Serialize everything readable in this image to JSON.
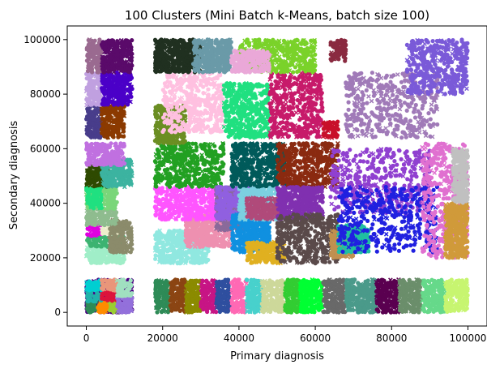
{
  "chart_data": {
    "type": "scatter",
    "title": "100 Clusters (Mini Batch k-Means, batch size 100)",
    "xlabel": "Primary diagnosis",
    "ylabel": "Secondary diagnosis",
    "xlim": [
      -5000,
      105000
    ],
    "ylim": [
      -5000,
      105000
    ],
    "xticks": [
      0,
      20000,
      40000,
      60000,
      80000,
      100000
    ],
    "yticks": [
      0,
      20000,
      40000,
      60000,
      80000,
      100000
    ],
    "x_tick_labels": [
      "0",
      "20000",
      "40000",
      "60000",
      "80000",
      "100000"
    ],
    "y_tick_labels": [
      "0",
      "20000",
      "40000",
      "60000",
      "80000",
      "100000"
    ],
    "grid": false,
    "legend": "none",
    "marker_shapes": [
      "circle",
      "x"
    ],
    "clusters": [
      {
        "color": "#4b0082",
        "x": [
          0,
          12000
        ],
        "y": [
          0,
          12000
        ]
      },
      {
        "color": "#2e8b57",
        "x": [
          0,
          3000
        ],
        "y": [
          0,
          4000
        ]
      },
      {
        "color": "#ff8c00",
        "x": [
          3000,
          6000
        ],
        "y": [
          0,
          4000
        ]
      },
      {
        "color": "#9acd32",
        "x": [
          6000,
          9000
        ],
        "y": [
          0,
          4000
        ]
      },
      {
        "color": "#20b2aa",
        "x": [
          0,
          4000
        ],
        "y": [
          4000,
          8000
        ]
      },
      {
        "color": "#dc143c",
        "x": [
          4000,
          8000
        ],
        "y": [
          4000,
          8000
        ]
      },
      {
        "color": "#00ced1",
        "x": [
          0,
          4000
        ],
        "y": [
          8000,
          12000
        ]
      },
      {
        "color": "#e9967a",
        "x": [
          4000,
          9000
        ],
        "y": [
          8000,
          12000
        ]
      },
      {
        "color": "#9370db",
        "x": [
          8000,
          12000
        ],
        "y": [
          0,
          6000
        ]
      },
      {
        "color": "#a0e0c0",
        "x": [
          8000,
          12000
        ],
        "y": [
          6000,
          12000
        ]
      },
      {
        "color": "#2e8b57",
        "x": [
          18000,
          22000
        ],
        "y": [
          0,
          12000
        ]
      },
      {
        "color": "#8b4513",
        "x": [
          22000,
          26000
        ],
        "y": [
          0,
          12000
        ]
      },
      {
        "color": "#8b8b00",
        "x": [
          26000,
          30000
        ],
        "y": [
          0,
          12000
        ]
      },
      {
        "color": "#c71585",
        "x": [
          30000,
          34000
        ],
        "y": [
          0,
          12000
        ]
      },
      {
        "color": "#2f4f9f",
        "x": [
          34000,
          38000
        ],
        "y": [
          0,
          12000
        ]
      },
      {
        "color": "#ff69b4",
        "x": [
          38000,
          42000
        ],
        "y": [
          0,
          12000
        ]
      },
      {
        "color": "#48d1cc",
        "x": [
          42000,
          46000
        ],
        "y": [
          0,
          12000
        ]
      },
      {
        "color": "#cdd89a",
        "x": [
          46000,
          52000
        ],
        "y": [
          0,
          12000
        ]
      },
      {
        "color": "#32cd32",
        "x": [
          52000,
          56000
        ],
        "y": [
          0,
          12000
        ]
      },
      {
        "color": "#00ff33",
        "x": [
          56000,
          62000
        ],
        "y": [
          0,
          12000
        ]
      },
      {
        "color": "#696969",
        "x": [
          62000,
          68000
        ],
        "y": [
          0,
          12000
        ]
      },
      {
        "color": "#4a9a8a",
        "x": [
          68000,
          76000
        ],
        "y": [
          0,
          12000
        ]
      },
      {
        "color": "#5a0050",
        "x": [
          76000,
          82000
        ],
        "y": [
          0,
          12000
        ]
      },
      {
        "color": "#6b8e6b",
        "x": [
          82000,
          88000
        ],
        "y": [
          0,
          12000
        ]
      },
      {
        "color": "#66d98a",
        "x": [
          88000,
          94000
        ],
        "y": [
          0,
          12000
        ]
      },
      {
        "color": "#c7f570",
        "x": [
          94000,
          100000
        ],
        "y": [
          0,
          12000
        ]
      },
      {
        "color": "#a0eec8",
        "x": [
          0,
          10000
        ],
        "y": [
          18000,
          24000
        ]
      },
      {
        "color": "#3cb371",
        "x": [
          0,
          10000
        ],
        "y": [
          24000,
          28000
        ]
      },
      {
        "color": "#e000e0",
        "x": [
          0,
          4000
        ],
        "y": [
          28000,
          32000
        ]
      },
      {
        "color": "#eeeecc",
        "x": [
          4000,
          8000
        ],
        "y": [
          28000,
          32000
        ]
      },
      {
        "color": "#8b8b6b",
        "x": [
          6000,
          12000
        ],
        "y": [
          22000,
          34000
        ]
      },
      {
        "color": "#8fbc8f",
        "x": [
          0,
          8000
        ],
        "y": [
          32000,
          38000
        ]
      },
      {
        "color": "#7ad67a",
        "x": [
          0,
          8000
        ],
        "y": [
          38000,
          46000
        ]
      },
      {
        "color": "#20e080",
        "x": [
          0,
          4000
        ],
        "y": [
          38000,
          46000
        ]
      },
      {
        "color": "#2e4a00",
        "x": [
          0,
          6000
        ],
        "y": [
          46000,
          54000
        ]
      },
      {
        "color": "#3cb3a0",
        "x": [
          4000,
          12000
        ],
        "y": [
          46000,
          56000
        ]
      },
      {
        "color": "#c070e0",
        "x": [
          0,
          10000
        ],
        "y": [
          54000,
          62000
        ]
      },
      {
        "color": "#483d8b",
        "x": [
          0,
          4000
        ],
        "y": [
          64000,
          76000
        ]
      },
      {
        "color": "#8b3a00",
        "x": [
          4000,
          10000
        ],
        "y": [
          64000,
          76000
        ]
      },
      {
        "color": "#c0a0e0",
        "x": [
          0,
          4000
        ],
        "y": [
          76000,
          88000
        ]
      },
      {
        "color": "#4b00c8",
        "x": [
          4000,
          12000
        ],
        "y": [
          76000,
          88000
        ]
      },
      {
        "color": "#9a6a90",
        "x": [
          0,
          4000
        ],
        "y": [
          88000,
          100000
        ]
      },
      {
        "color": "#5a0a6a",
        "x": [
          4000,
          12000
        ],
        "y": [
          88000,
          100000
        ]
      },
      {
        "color": "#90e8e0",
        "x": [
          18000,
          32000
        ],
        "y": [
          18000,
          30000
        ]
      },
      {
        "color": "#ee90b0",
        "x": [
          26000,
          38000
        ],
        "y": [
          24000,
          36000
        ]
      },
      {
        "color": "#ff55ff",
        "x": [
          18000,
          34000
        ],
        "y": [
          34000,
          46000
        ]
      },
      {
        "color": "#22a022",
        "x": [
          18000,
          36000
        ],
        "y": [
          46000,
          62000
        ]
      },
      {
        "color": "#6b8e23",
        "x": [
          18000,
          26000
        ],
        "y": [
          62000,
          76000
        ]
      },
      {
        "color": "#ffc0e0",
        "x": [
          20000,
          36000
        ],
        "y": [
          66000,
          88000
        ]
      },
      {
        "color": "#20e080",
        "x": [
          36000,
          48000
        ],
        "y": [
          64000,
          84000
        ]
      },
      {
        "color": "#203020",
        "x": [
          18000,
          30000
        ],
        "y": [
          88000,
          100000
        ]
      },
      {
        "color": "#6a9aa8",
        "x": [
          28000,
          38000
        ],
        "y": [
          88000,
          100000
        ]
      },
      {
        "color": "#8a6a9a",
        "x": [
          34000,
          42000
        ],
        "y": [
          30000,
          46000
        ]
      },
      {
        "color": "#9060e0",
        "x": [
          34000,
          44000
        ],
        "y": [
          34000,
          46000
        ]
      },
      {
        "color": "#1090e0",
        "x": [
          38000,
          48000
        ],
        "y": [
          22000,
          36000
        ]
      },
      {
        "color": "#7cd0e0",
        "x": [
          40000,
          50000
        ],
        "y": [
          34000,
          46000
        ]
      },
      {
        "color": "#b04a7a",
        "x": [
          42000,
          52000
        ],
        "y": [
          34000,
          42000
        ]
      },
      {
        "color": "#e0b020",
        "x": [
          42000,
          52000
        ],
        "y": [
          18000,
          26000
        ]
      },
      {
        "color": "#005a5a",
        "x": [
          38000,
          52000
        ],
        "y": [
          46000,
          62000
        ]
      },
      {
        "color": "#8a2a10",
        "x": [
          50000,
          66000
        ],
        "y": [
          46000,
          62000
        ]
      },
      {
        "color": "#8030b0",
        "x": [
          50000,
          62000
        ],
        "y": [
          34000,
          46000
        ]
      },
      {
        "color": "#5a4a4a",
        "x": [
          50000,
          66000
        ],
        "y": [
          18000,
          36000
        ]
      },
      {
        "color": "#c71a6a",
        "x": [
          48000,
          62000
        ],
        "y": [
          64000,
          88000
        ]
      },
      {
        "color": "#7ad22a",
        "x": [
          40000,
          60000
        ],
        "y": [
          88000,
          100000
        ]
      },
      {
        "color": "#eaa8d8",
        "x": [
          38000,
          48000
        ],
        "y": [
          88000,
          96000
        ]
      },
      {
        "color": "#c8102a",
        "x": [
          62000,
          66000
        ],
        "y": [
          64000,
          70000
        ]
      },
      {
        "color": "#c09050",
        "x": [
          64000,
          70000
        ],
        "y": [
          20000,
          30000
        ]
      },
      {
        "color": "#20c0a0",
        "x": [
          66000,
          74000
        ],
        "y": [
          22000,
          32000
        ]
      },
      {
        "color": "#9040d0",
        "x": [
          64000,
          90000
        ],
        "y": [
          36000,
          60000
        ]
      },
      {
        "color": "#2020e0",
        "x": [
          66000,
          92000
        ],
        "y": [
          22000,
          46000
        ]
      },
      {
        "color": "#a07ab8",
        "x": [
          68000,
          92000
        ],
        "y": [
          64000,
          88000
        ]
      },
      {
        "color": "#7a5ad8",
        "x": [
          84000,
          100000
        ],
        "y": [
          80000,
          100000
        ]
      },
      {
        "color": "#8a2a40",
        "x": [
          64000,
          68000
        ],
        "y": [
          92000,
          100000
        ]
      },
      {
        "color": "#e070d0",
        "x": [
          88000,
          100000
        ],
        "y": [
          20000,
          62000
        ]
      },
      {
        "color": "#d09a3a",
        "x": [
          94000,
          100000
        ],
        "y": [
          20000,
          40000
        ]
      },
      {
        "color": "#c0c0c0",
        "x": [
          96000,
          100000
        ],
        "y": [
          40000,
          60000
        ]
      }
    ]
  }
}
